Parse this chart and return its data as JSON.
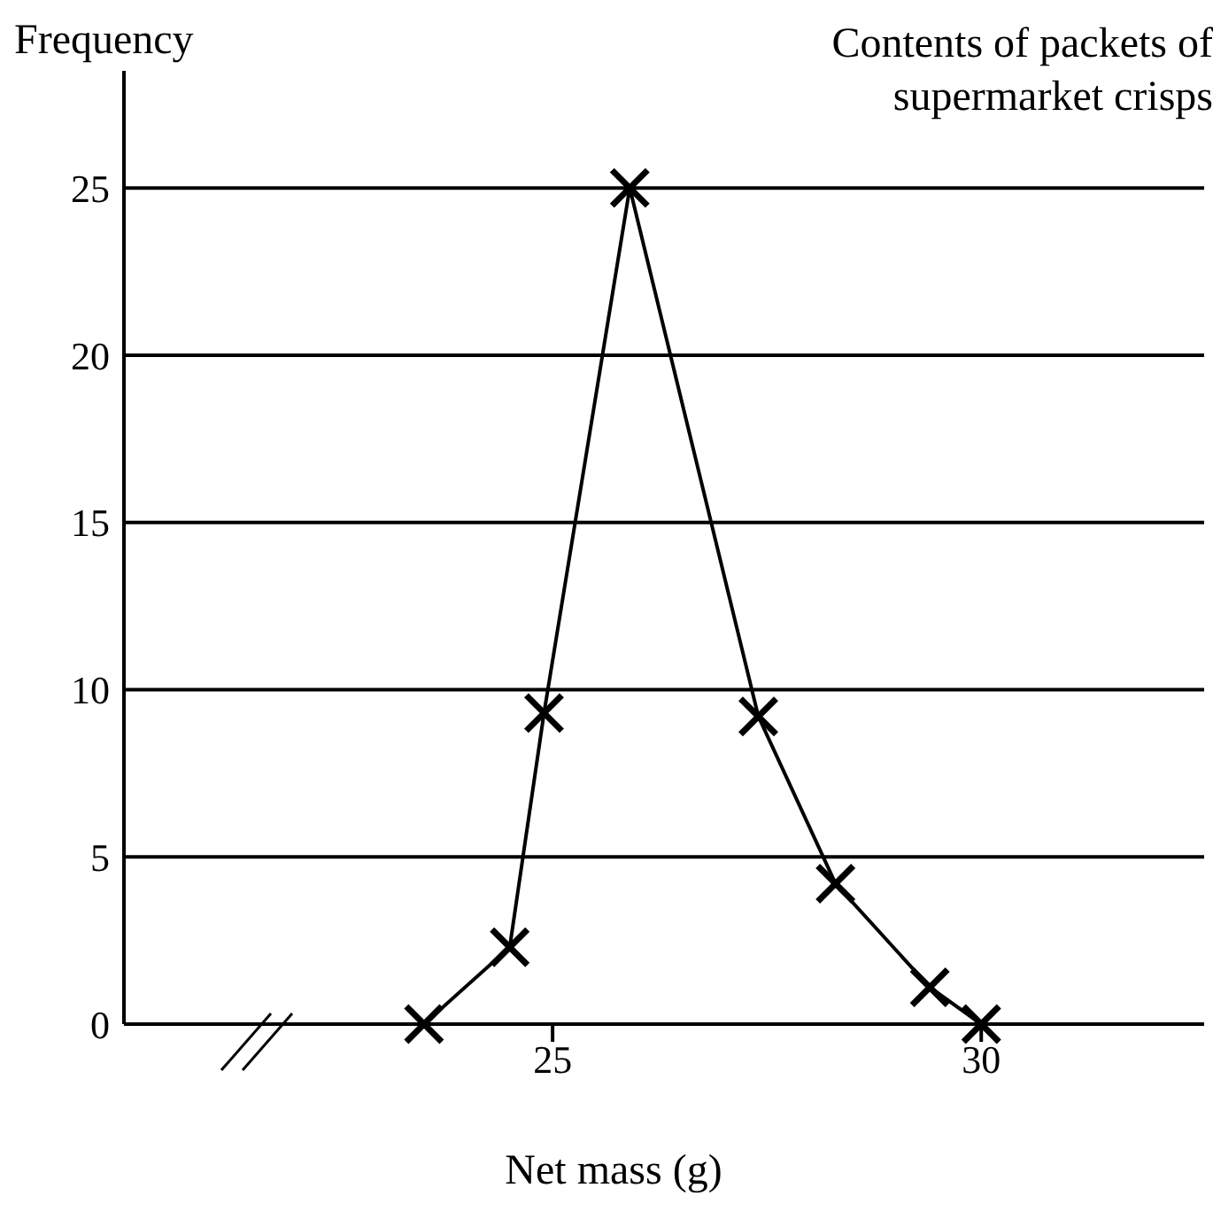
{
  "chart_data": {
    "type": "line",
    "title": "Contents of packets of supermarket crisps",
    "xlabel": "Net mass (g)",
    "ylabel": "Frequency",
    "x": [
      23.5,
      24.5,
      24.9,
      25.9,
      27.4,
      28.3,
      29.4,
      30
    ],
    "series": [
      {
        "color": "#000000",
        "values": [
          0,
          2.3,
          9.3,
          25,
          9.2,
          4.2,
          1.1,
          0
        ]
      }
    ],
    "xlim": [
      20,
      32.6
    ],
    "xticks": [
      25,
      30
    ],
    "ylim": [
      0,
      28.5
    ],
    "yticks": [
      0,
      5,
      10,
      15,
      20,
      25
    ],
    "grid": "y",
    "marker": "cross",
    "line_style": "solid"
  }
}
